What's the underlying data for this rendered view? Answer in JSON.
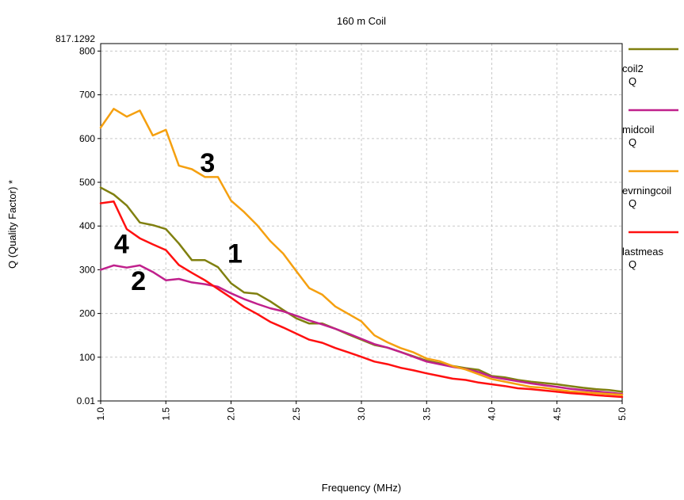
{
  "chart_data": {
    "type": "line",
    "title": "160 m Coil",
    "xlabel": "Frequency (MHz)",
    "ylabel": "Q  (Quality Factor) *",
    "xlim": [
      1.0,
      5.0
    ],
    "ylim": [
      0.01,
      817.1292
    ],
    "x_ticks": [
      "1.0",
      "1.5",
      "2.0",
      "2.5",
      "3.0",
      "3.5",
      "4.0",
      "4.5",
      "5.0"
    ],
    "y_ticks": [
      "0.01",
      "100",
      "200",
      "300",
      "400",
      "500",
      "600",
      "700",
      "800"
    ],
    "y_max_label": "817.1292",
    "grid": true,
    "legend_position": "right",
    "series": [
      {
        "name": "coil2",
        "unit": "Q",
        "color": "#808010",
        "x": [
          1.0,
          1.1,
          1.2,
          1.3,
          1.4,
          1.5,
          1.6,
          1.7,
          1.8,
          1.9,
          2.0,
          2.1,
          2.2,
          2.3,
          2.4,
          2.5,
          2.6,
          2.7,
          2.8,
          2.9,
          3.0,
          3.1,
          3.2,
          3.3,
          3.4,
          3.5,
          3.6,
          3.7,
          3.8,
          3.9,
          4.0,
          4.1,
          4.2,
          4.3,
          4.4,
          4.5,
          4.6,
          4.7,
          4.8,
          4.9,
          5.0
        ],
        "y": [
          488,
          472,
          447,
          408,
          402,
          393,
          360,
          322,
          322,
          306,
          269,
          248,
          245,
          228,
          208,
          189,
          177,
          177,
          165,
          152,
          140,
          128,
          122,
          112,
          102,
          92,
          86,
          80,
          75,
          71,
          57,
          54,
          48,
          44,
          41,
          38,
          34,
          30,
          27,
          25,
          21
        ]
      },
      {
        "name": "midcoil",
        "unit": "Q",
        "color": "#c0208c",
        "x": [
          1.0,
          1.1,
          1.2,
          1.3,
          1.4,
          1.5,
          1.6,
          1.7,
          1.8,
          1.9,
          2.0,
          2.1,
          2.2,
          2.3,
          2.4,
          2.5,
          2.6,
          2.7,
          2.8,
          2.9,
          3.0,
          3.1,
          3.2,
          3.3,
          3.4,
          3.5,
          3.6,
          3.7,
          3.8,
          3.9,
          4.0,
          4.1,
          4.2,
          4.3,
          4.4,
          4.5,
          4.6,
          4.7,
          4.8,
          4.9,
          5.0
        ],
        "y": [
          300,
          310,
          305,
          310,
          295,
          276,
          279,
          271,
          267,
          261,
          246,
          233,
          222,
          212,
          205,
          195,
          184,
          175,
          165,
          154,
          142,
          130,
          122,
          112,
          101,
          90,
          84,
          78,
          73,
          66,
          55,
          50,
          45,
          40,
          36,
          32,
          28,
          25,
          22,
          19,
          16
        ]
      },
      {
        "name": "evrningcoil",
        "unit": "Q",
        "color": "#f5a010",
        "x": [
          1.0,
          1.1,
          1.2,
          1.3,
          1.4,
          1.5,
          1.6,
          1.7,
          1.8,
          1.9,
          2.0,
          2.1,
          2.2,
          2.3,
          2.4,
          2.5,
          2.6,
          2.7,
          2.8,
          2.9,
          3.0,
          3.1,
          3.2,
          3.3,
          3.4,
          3.5,
          3.6,
          3.7,
          3.8,
          3.9,
          4.0,
          4.1,
          4.2,
          4.3,
          4.4,
          4.5,
          4.6,
          4.7,
          4.8,
          4.9,
          5.0
        ],
        "y": [
          625,
          668,
          650,
          664,
          607,
          620,
          538,
          530,
          512,
          512,
          458,
          432,
          402,
          366,
          337,
          297,
          258,
          243,
          216,
          199,
          182,
          150,
          134,
          121,
          111,
          97,
          91,
          80,
          72,
          61,
          50,
          44,
          38,
          32,
          30,
          26,
          22,
          20,
          18,
          16,
          14
        ]
      },
      {
        "name": "lastmeas",
        "unit": "Q",
        "color": "#ff1010",
        "x": [
          1.0,
          1.1,
          1.2,
          1.3,
          1.4,
          1.5,
          1.6,
          1.7,
          1.8,
          1.9,
          2.0,
          2.1,
          2.2,
          2.3,
          2.4,
          2.5,
          2.6,
          2.7,
          2.8,
          2.9,
          3.0,
          3.1,
          3.2,
          3.3,
          3.4,
          3.5,
          3.6,
          3.7,
          3.8,
          3.9,
          4.0,
          4.1,
          4.2,
          4.3,
          4.4,
          4.5,
          4.6,
          4.7,
          4.8,
          4.9,
          5.0
        ],
        "y": [
          452,
          456,
          393,
          372,
          358,
          345,
          311,
          293,
          276,
          256,
          236,
          215,
          199,
          181,
          168,
          154,
          140,
          133,
          121,
          111,
          101,
          90,
          84,
          76,
          70,
          63,
          57,
          51,
          48,
          42,
          38,
          34,
          29,
          27,
          24,
          21,
          18,
          16,
          13,
          11,
          9
        ]
      }
    ],
    "annotations": [
      {
        "text": "1",
        "x": 2.03,
        "y": 338
      },
      {
        "text": "2",
        "x": 1.29,
        "y": 275
      },
      {
        "text": "3",
        "x": 1.82,
        "y": 545
      },
      {
        "text": "4",
        "x": 1.16,
        "y": 360
      }
    ]
  }
}
